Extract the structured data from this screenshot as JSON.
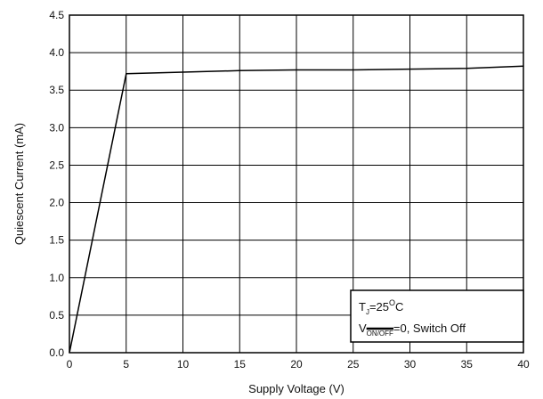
{
  "chart_data": {
    "type": "line",
    "title": "",
    "xlabel": "Supply Voltage (V)",
    "ylabel": "Quiescent Current (mA)",
    "xlim": [
      0,
      40
    ],
    "ylim": [
      0,
      4.5
    ],
    "grid": true,
    "x_ticks": [
      "0",
      "5",
      "10",
      "15",
      "20",
      "25",
      "30",
      "35",
      "40"
    ],
    "y_ticks": [
      "0.0",
      "0.5",
      "1.0",
      "1.5",
      "2.0",
      "2.5",
      "3.0",
      "3.5",
      "4.0",
      "4.5"
    ],
    "legend_placement": "bottom-right",
    "annotation": {
      "line1": {
        "main": "T",
        "sub": "J",
        "rest1": "=25",
        "sup": "O",
        "rest2": "C"
      },
      "line2": {
        "main": "V",
        "sub": "ON/OFF",
        "rest": "=0, Switch Off"
      }
    },
    "series": [
      {
        "x": [
          0,
          5,
          10,
          15,
          20,
          25,
          30,
          35,
          40
        ],
        "y": [
          0.0,
          3.72,
          3.74,
          3.76,
          3.77,
          3.77,
          3.78,
          3.79,
          3.82
        ]
      }
    ]
  }
}
